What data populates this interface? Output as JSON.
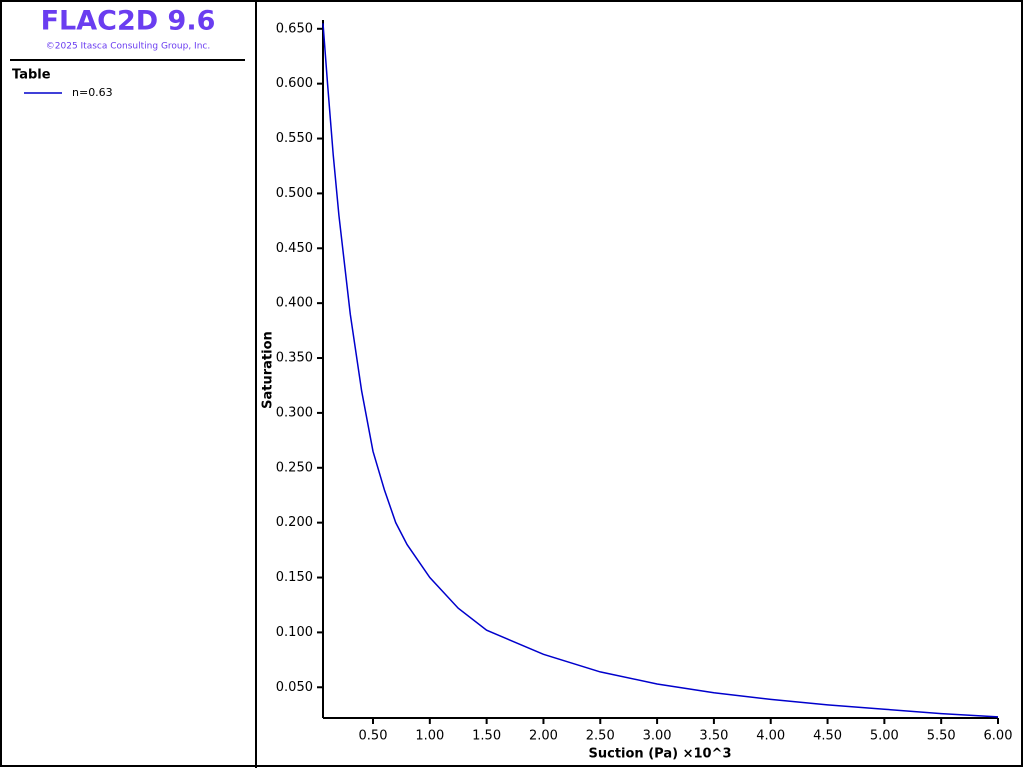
{
  "header": {
    "title": "FLAC2D 9.6",
    "copyright": "©2025 Itasca Consulting Group, Inc."
  },
  "legend_title": "Table",
  "chart_data": {
    "type": "line",
    "xlabel": "Suction (Pa) ×10^3",
    "ylabel": "Saturation",
    "x": [
      0.06,
      0.1,
      0.15,
      0.2,
      0.3,
      0.4,
      0.5,
      0.6,
      0.7,
      0.8,
      1.0,
      1.25,
      1.5,
      2.0,
      2.5,
      3.0,
      3.5,
      4.0,
      4.5,
      5.0,
      5.5,
      6.0
    ],
    "series": [
      {
        "name": "n=0.63",
        "color": "#0000cc",
        "values": [
          0.655,
          0.6,
          0.535,
          0.48,
          0.39,
          0.32,
          0.265,
          0.23,
          0.2,
          0.18,
          0.15,
          0.122,
          0.102,
          0.08,
          0.064,
          0.053,
          0.045,
          0.039,
          0.034,
          0.03,
          0.026,
          0.023
        ]
      }
    ],
    "xlim": [
      0.06,
      6.0
    ],
    "ylim": [
      0.022,
      0.658
    ],
    "xticks": [
      {
        "value": 0.5,
        "label": "0.50"
      },
      {
        "value": 1,
        "label": "1.00"
      },
      {
        "value": 1.5,
        "label": "1.50"
      },
      {
        "value": 2,
        "label": "2.00"
      },
      {
        "value": 2.5,
        "label": "2.50"
      },
      {
        "value": 3,
        "label": "3.00"
      },
      {
        "value": 3.5,
        "label": "3.50"
      },
      {
        "value": 4,
        "label": "4.00"
      },
      {
        "value": 4.5,
        "label": "4.50"
      },
      {
        "value": 5,
        "label": "5.00"
      },
      {
        "value": 5.5,
        "label": "5.50"
      },
      {
        "value": 6,
        "label": "6.00"
      }
    ],
    "yticks": [
      {
        "value": 0.05,
        "label": "0.050"
      },
      {
        "value": 0.1,
        "label": "0.100"
      },
      {
        "value": 0.15,
        "label": "0.150"
      },
      {
        "value": 0.2,
        "label": "0.200"
      },
      {
        "value": 0.25,
        "label": "0.250"
      },
      {
        "value": 0.3,
        "label": "0.300"
      },
      {
        "value": 0.35,
        "label": "0.350"
      },
      {
        "value": 0.4,
        "label": "0.400"
      },
      {
        "value": 0.45,
        "label": "0.450"
      },
      {
        "value": 0.5,
        "label": "0.500"
      },
      {
        "value": 0.55,
        "label": "0.550"
      },
      {
        "value": 0.6,
        "label": "0.600"
      },
      {
        "value": 0.65,
        "label": "0.650"
      }
    ]
  }
}
